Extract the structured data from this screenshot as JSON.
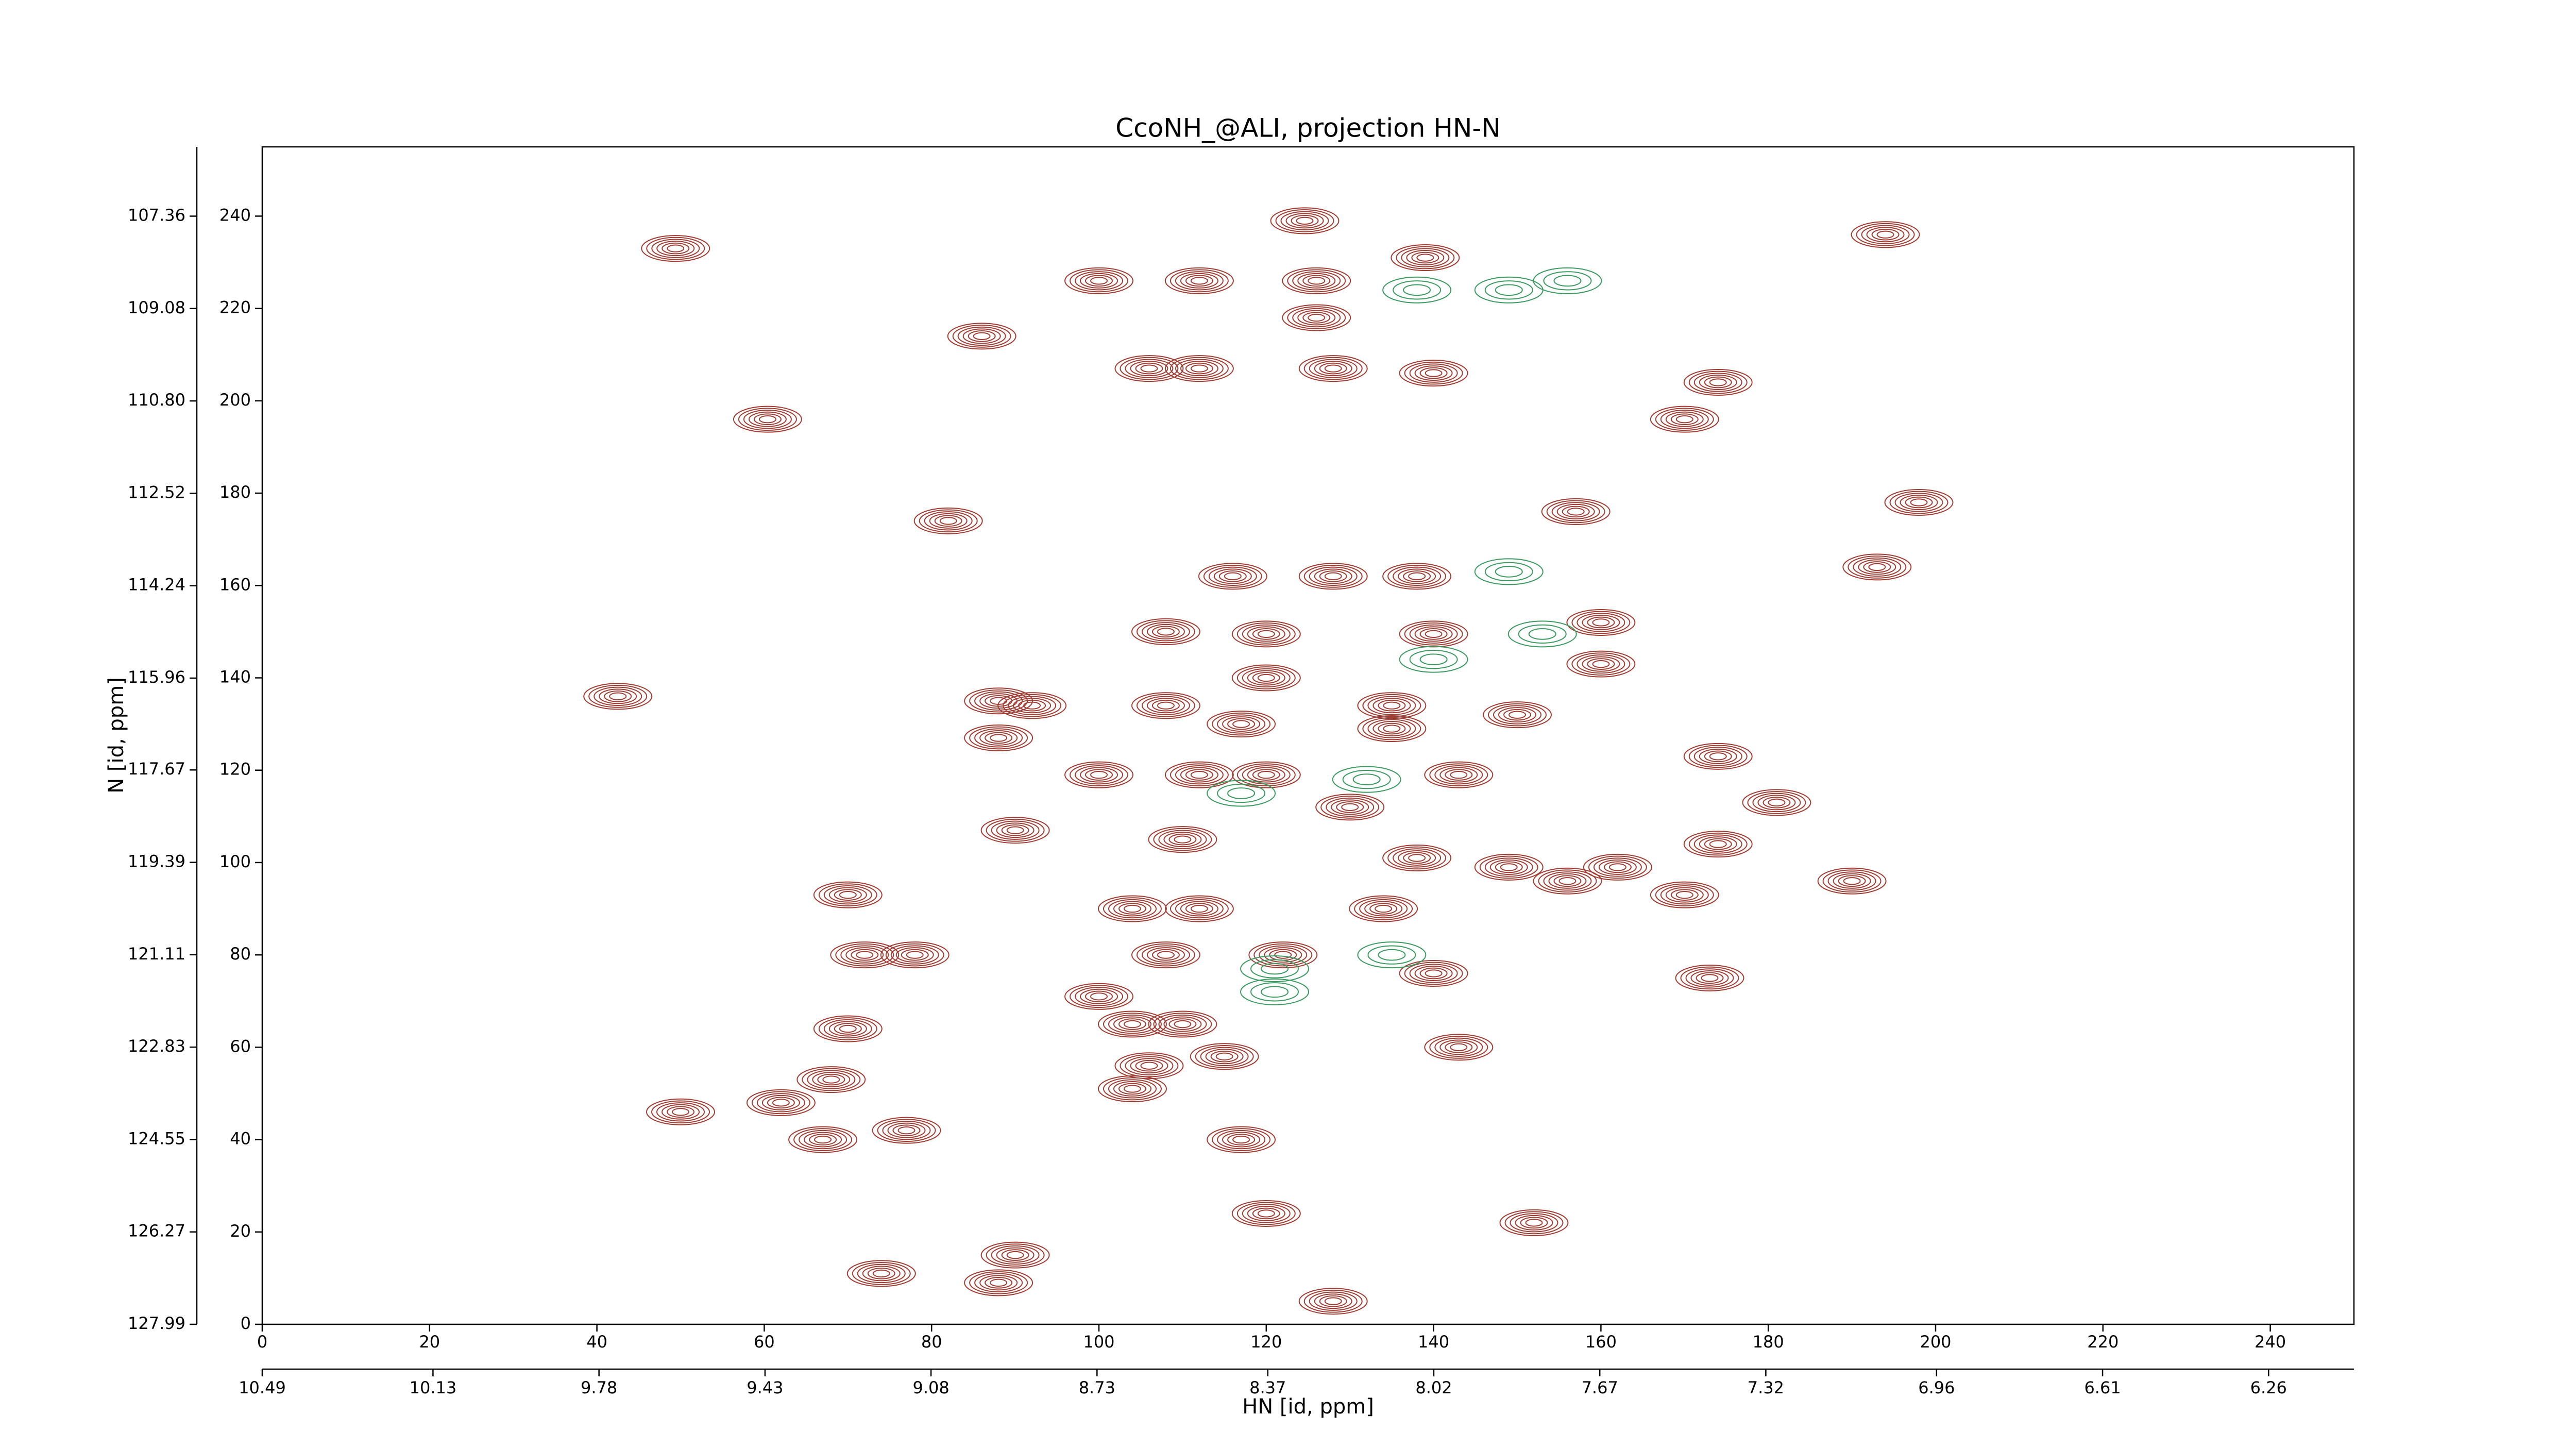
{
  "chart_data": {
    "type": "contour",
    "title": "CcoNH_@ALI, projection HN-N",
    "x_label": "HN [id, ppm]",
    "y_label": "N [id, ppm]",
    "xlim": [
      0,
      250
    ],
    "ylim": [
      0,
      255
    ],
    "xticks": [
      0,
      20,
      40,
      60,
      80,
      100,
      120,
      140,
      160,
      180,
      200,
      220,
      240
    ],
    "yticks": [
      0,
      20,
      40,
      60,
      80,
      100,
      120,
      140,
      160,
      180,
      200,
      220,
      240
    ],
    "x2lim": [
      10.49,
      6.08
    ],
    "x2ticks": [
      10.49,
      10.13,
      9.78,
      9.43,
      9.08,
      8.73,
      8.37,
      8.02,
      7.67,
      7.32,
      6.96,
      6.61,
      6.26
    ],
    "y2lim": [
      127.99,
      106.07
    ],
    "y2ticks": [
      127.99,
      126.27,
      124.55,
      122.83,
      121.11,
      119.39,
      117.67,
      115.96,
      114.24,
      112.52,
      {
        "value": 110.8,
        "label": "110.80"
      },
      109.08,
      107.36
    ],
    "series": [
      {
        "color": "#a13c32",
        "x": [
          124.6,
          194,
          49.4,
          126,
          112,
          100,
          139,
          126,
          86,
          112,
          106,
          128,
          140,
          174,
          60.4,
          170,
          198,
          157,
          82,
          193,
          116,
          128,
          138,
          140,
          120,
          108,
          160,
          160,
          42.5,
          120,
          88,
          92,
          135,
          108,
          150,
          88,
          117,
          135,
          174,
          120,
          112,
          100,
          143,
          181,
          130,
          90,
          110,
          174,
          138,
          149,
          162,
          190,
          156,
          70,
          170,
          112,
          104,
          134,
          72,
          78,
          122,
          108,
          140,
          173,
          100,
          110,
          104,
          70,
          115,
          143,
          106,
          68,
          104,
          50,
          62,
          67,
          77,
          117,
          120,
          152,
          90,
          74,
          128,
          88
        ],
        "values": [
          239,
          236,
          233,
          226,
          226,
          226,
          231,
          218,
          214,
          207,
          207,
          207,
          206,
          204,
          196,
          196,
          178,
          176,
          174,
          164,
          162,
          162,
          162,
          149.5,
          149.5,
          150,
          152,
          143,
          136,
          140,
          135,
          134,
          134,
          134,
          132,
          127,
          130,
          129,
          123,
          119,
          119,
          119,
          119,
          113,
          112,
          107,
          105,
          104,
          101,
          99,
          99,
          96,
          96,
          93,
          93,
          90,
          90,
          90,
          80,
          80,
          80,
          80,
          76,
          75,
          71,
          65,
          65,
          64,
          58,
          60,
          56,
          53,
          51,
          46,
          48,
          40,
          42,
          40,
          24,
          22,
          15,
          11,
          5,
          9
        ]
      },
      {
        "color": "#3a9a60",
        "x": [
          138,
          149,
          156,
          149,
          153,
          140,
          132,
          117,
          121,
          135,
          121
        ],
        "values": [
          224,
          224,
          226,
          163,
          149.5,
          144,
          118,
          115,
          77,
          80,
          72
        ]
      }
    ]
  }
}
